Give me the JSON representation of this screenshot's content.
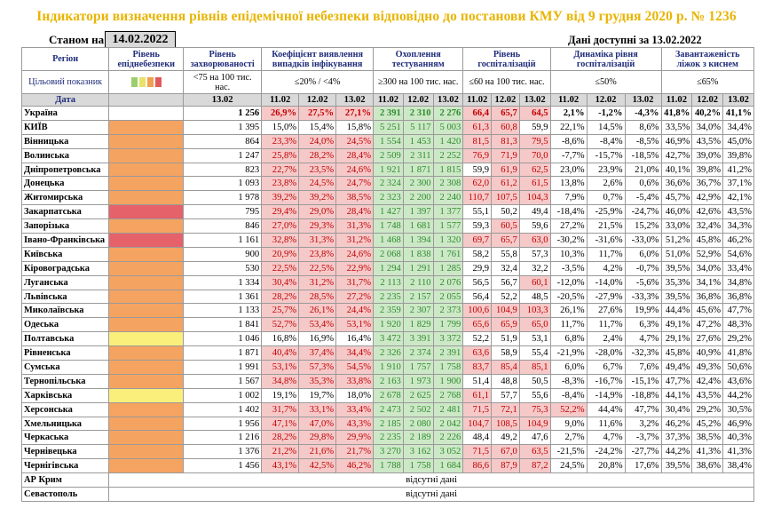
{
  "title": "Індикатори визначення рівнів епідемічної небезпеки відповідно до постанови КМУ від 9 грудня 2020 р. № 1236",
  "as_of_label": "Станом на",
  "as_of_date": "14.02.2022",
  "data_available": "Дані доступні за 13.02.2022",
  "headers": {
    "region": "Регіон",
    "target": "Цільовий показник",
    "date": "Дата",
    "level": "Рівень епіднебезпеки",
    "incidence": "Рівень захворюваності",
    "incidence_target": "<75 на 100 тис. нас.",
    "detection": "Коефіцієнт виявлення випадків інфікування",
    "detection_target": "≤20% / <4%",
    "testing": "Охоплення тестуванням",
    "testing_target": "≥300 на 100 тис. нас.",
    "hosp": "Рівень госпіталізацій",
    "hosp_target": "≤60 на 100 тис. нас.",
    "dyn": "Динаміка рівня госпіталізацій",
    "dyn_target": "≤50%",
    "beds": "Завантаженість ліжок з киснем",
    "beds_target": "≤65%"
  },
  "dates": {
    "d1302": "13.02",
    "d1102": "11.02",
    "d1202": "12.02"
  },
  "colors": {
    "yellow": "#fbef7b",
    "orange": "#f5a361",
    "red": "#e5626a",
    "green_light": "#c9e27a"
  },
  "legend_swatches": [
    "#9ccf6b",
    "#e8e16a",
    "#f0a050",
    "#e05a5a"
  ],
  "rows": [
    {
      "r": "Україна",
      "lvl": "",
      "inc": "1 256",
      "det": [
        "26,9%",
        "27,5%",
        "27,1%"
      ],
      "tst": [
        "2 391",
        "2 310",
        "2 276"
      ],
      "hosp": [
        "66,4",
        "65,7",
        "64,5"
      ],
      "dyn": [
        "2,1%",
        "-1,2%",
        "-4,3%"
      ],
      "beds": [
        "41,8%",
        "40,2%",
        "41,1%"
      ]
    },
    {
      "r": "КИЇВ",
      "lvl": "orange",
      "inc": "1 395",
      "det": [
        "15,0%",
        "15,4%",
        "15,8%"
      ],
      "tst": [
        "5 251",
        "5 117",
        "5 003"
      ],
      "hosp": [
        "61,3",
        "60,8",
        "59,9"
      ],
      "dyn": [
        "22,1%",
        "14,5%",
        "8,6%"
      ],
      "beds": [
        "33,5%",
        "34,0%",
        "34,4%"
      ]
    },
    {
      "r": "Вінницька",
      "lvl": "orange",
      "inc": "864",
      "det": [
        "23,3%",
        "24,0%",
        "24,5%"
      ],
      "tst": [
        "1 554",
        "1 453",
        "1 420"
      ],
      "hosp": [
        "81,5",
        "81,3",
        "79,5"
      ],
      "dyn": [
        "-8,6%",
        "-8,4%",
        "-8,5%"
      ],
      "beds": [
        "46,9%",
        "43,5%",
        "45,0%"
      ]
    },
    {
      "r": "Волинська",
      "lvl": "orange",
      "inc": "1 247",
      "det": [
        "25,8%",
        "28,2%",
        "28,4%"
      ],
      "tst": [
        "2 509",
        "2 311",
        "2 252"
      ],
      "hosp": [
        "76,9",
        "71,9",
        "70,0"
      ],
      "dyn": [
        "-7,7%",
        "-15,7%",
        "-18,5%"
      ],
      "beds": [
        "42,7%",
        "39,0%",
        "39,8%"
      ]
    },
    {
      "r": "Дніпропетровська",
      "lvl": "orange",
      "inc": "823",
      "det": [
        "22,7%",
        "23,5%",
        "24,6%"
      ],
      "tst": [
        "1 921",
        "1 871",
        "1 815"
      ],
      "hosp": [
        "59,9",
        "61,9",
        "62,5"
      ],
      "dyn": [
        "23,0%",
        "23,9%",
        "21,0%"
      ],
      "beds": [
        "40,1%",
        "39,8%",
        "41,2%"
      ]
    },
    {
      "r": "Донецька",
      "lvl": "orange",
      "inc": "1 093",
      "det": [
        "23,8%",
        "24,5%",
        "24,7%"
      ],
      "tst": [
        "2 324",
        "2 300",
        "2 308"
      ],
      "hosp": [
        "62,0",
        "61,2",
        "61,5"
      ],
      "dyn": [
        "13,8%",
        "2,6%",
        "0,6%"
      ],
      "beds": [
        "36,6%",
        "36,7%",
        "37,1%"
      ]
    },
    {
      "r": "Житомирська",
      "lvl": "orange",
      "inc": "1 978",
      "det": [
        "39,2%",
        "39,2%",
        "38,5%"
      ],
      "tst": [
        "2 323",
        "2 200",
        "2 240"
      ],
      "hosp": [
        "110,7",
        "107,5",
        "104,3"
      ],
      "dyn": [
        "7,9%",
        "0,7%",
        "-5,4%"
      ],
      "beds": [
        "45,7%",
        "42,9%",
        "42,1%"
      ]
    },
    {
      "r": "Закарпатська",
      "lvl": "red",
      "inc": "795",
      "det": [
        "29,4%",
        "29,0%",
        "28,4%"
      ],
      "tst": [
        "1 427",
        "1 397",
        "1 377"
      ],
      "hosp": [
        "55,1",
        "50,2",
        "49,4"
      ],
      "dyn": [
        "-18,4%",
        "-25,9%",
        "-24,7%"
      ],
      "beds": [
        "46,0%",
        "42,6%",
        "43,5%"
      ]
    },
    {
      "r": "Запорізька",
      "lvl": "orange",
      "inc": "846",
      "det": [
        "27,0%",
        "29,3%",
        "31,3%"
      ],
      "tst": [
        "1 748",
        "1 681",
        "1 577"
      ],
      "hosp": [
        "59,3",
        "60,5",
        "59,6"
      ],
      "dyn": [
        "27,2%",
        "21,5%",
        "15,2%"
      ],
      "beds": [
        "33,0%",
        "32,4%",
        "34,3%"
      ]
    },
    {
      "r": "Івано-Франківська",
      "lvl": "red",
      "inc": "1 161",
      "det": [
        "32,8%",
        "31,3%",
        "31,2%"
      ],
      "tst": [
        "1 468",
        "1 394",
        "1 320"
      ],
      "hosp": [
        "69,7",
        "65,7",
        "63,0"
      ],
      "dyn": [
        "-30,2%",
        "-31,6%",
        "-33,0%"
      ],
      "beds": [
        "51,2%",
        "45,8%",
        "46,2%"
      ]
    },
    {
      "r": "Київська",
      "lvl": "orange",
      "inc": "900",
      "det": [
        "20,9%",
        "23,8%",
        "24,6%"
      ],
      "tst": [
        "2 068",
        "1 838",
        "1 761"
      ],
      "hosp": [
        "58,2",
        "55,8",
        "57,3"
      ],
      "dyn": [
        "10,3%",
        "11,7%",
        "6,0%"
      ],
      "beds": [
        "51,0%",
        "52,9%",
        "54,6%"
      ]
    },
    {
      "r": "Кіровоградська",
      "lvl": "orange",
      "inc": "530",
      "det": [
        "22,5%",
        "22,5%",
        "22,9%"
      ],
      "tst": [
        "1 294",
        "1 291",
        "1 285"
      ],
      "hosp": [
        "29,9",
        "32,4",
        "32,2"
      ],
      "dyn": [
        "-3,5%",
        "4,2%",
        "-0,7%"
      ],
      "beds": [
        "39,5%",
        "34,0%",
        "33,4%"
      ]
    },
    {
      "r": "Луганська",
      "lvl": "orange",
      "inc": "1 334",
      "det": [
        "30,4%",
        "31,2%",
        "31,7%"
      ],
      "tst": [
        "2 113",
        "2 110",
        "2 076"
      ],
      "hosp": [
        "56,5",
        "56,7",
        "60,1"
      ],
      "dyn": [
        "-12,0%",
        "-14,0%",
        "-5,6%"
      ],
      "beds": [
        "35,3%",
        "34,1%",
        "34,8%"
      ]
    },
    {
      "r": "Львівська",
      "lvl": "orange",
      "inc": "1 361",
      "det": [
        "28,2%",
        "28,5%",
        "27,2%"
      ],
      "tst": [
        "2 235",
        "2 157",
        "2 055"
      ],
      "hosp": [
        "56,4",
        "52,2",
        "48,5"
      ],
      "dyn": [
        "-20,5%",
        "-27,9%",
        "-33,3%"
      ],
      "beds": [
        "39,5%",
        "36,8%",
        "36,8%"
      ]
    },
    {
      "r": "Миколаївська",
      "lvl": "orange",
      "inc": "1 133",
      "det": [
        "25,7%",
        "26,1%",
        "24,4%"
      ],
      "tst": [
        "2 359",
        "2 307",
        "2 373"
      ],
      "hosp": [
        "100,6",
        "104,9",
        "103,3"
      ],
      "dyn": [
        "26,1%",
        "27,6%",
        "19,9%"
      ],
      "beds": [
        "44,4%",
        "45,6%",
        "47,7%"
      ]
    },
    {
      "r": "Одеська",
      "lvl": "orange",
      "inc": "1 841",
      "det": [
        "52,7%",
        "53,4%",
        "53,1%"
      ],
      "tst": [
        "1 920",
        "1 829",
        "1 799"
      ],
      "hosp": [
        "65,6",
        "65,9",
        "65,0"
      ],
      "dyn": [
        "11,7%",
        "11,7%",
        "6,3%"
      ],
      "beds": [
        "49,1%",
        "47,2%",
        "48,3%"
      ]
    },
    {
      "r": "Полтавська",
      "lvl": "yellow",
      "inc": "1 046",
      "det": [
        "16,8%",
        "16,9%",
        "16,4%"
      ],
      "tst": [
        "3 472",
        "3 391",
        "3 372"
      ],
      "hosp": [
        "52,2",
        "51,9",
        "53,1"
      ],
      "dyn": [
        "6,8%",
        "2,4%",
        "4,7%"
      ],
      "beds": [
        "29,1%",
        "27,6%",
        "29,2%"
      ]
    },
    {
      "r": "Рівненська",
      "lvl": "orange",
      "inc": "1 871",
      "det": [
        "40,4%",
        "37,4%",
        "34,4%"
      ],
      "tst": [
        "2 326",
        "2 374",
        "2 391"
      ],
      "hosp": [
        "63,6",
        "58,9",
        "55,4"
      ],
      "dyn": [
        "-21,9%",
        "-28,0%",
        "-32,3%"
      ],
      "beds": [
        "45,8%",
        "40,9%",
        "41,8%"
      ]
    },
    {
      "r": "Сумська",
      "lvl": "orange",
      "inc": "1 991",
      "det": [
        "53,1%",
        "57,3%",
        "54,5%"
      ],
      "tst": [
        "1 910",
        "1 757",
        "1 758"
      ],
      "hosp": [
        "83,7",
        "85,4",
        "85,1"
      ],
      "dyn": [
        "6,0%",
        "6,7%",
        "7,6%"
      ],
      "beds": [
        "49,4%",
        "49,3%",
        "50,6%"
      ]
    },
    {
      "r": "Тернопільська",
      "lvl": "orange",
      "inc": "1 567",
      "det": [
        "34,8%",
        "35,3%",
        "33,8%"
      ],
      "tst": [
        "2 163",
        "1 973",
        "1 900"
      ],
      "hosp": [
        "51,4",
        "48,8",
        "50,5"
      ],
      "dyn": [
        "-8,3%",
        "-16,7%",
        "-15,1%"
      ],
      "beds": [
        "47,7%",
        "42,4%",
        "43,6%"
      ]
    },
    {
      "r": "Харківська",
      "lvl": "yellow",
      "inc": "1 002",
      "det": [
        "19,1%",
        "19,7%",
        "18,0%"
      ],
      "tst": [
        "2 678",
        "2 625",
        "2 768"
      ],
      "hosp": [
        "61,1",
        "57,7",
        "55,6"
      ],
      "dyn": [
        "-8,4%",
        "-14,9%",
        "-18,8%"
      ],
      "beds": [
        "44,1%",
        "43,5%",
        "44,2%"
      ]
    },
    {
      "r": "Херсонська",
      "lvl": "orange",
      "inc": "1 402",
      "det": [
        "31,7%",
        "33,1%",
        "33,4%"
      ],
      "tst": [
        "2 473",
        "2 502",
        "2 481"
      ],
      "hosp": [
        "71,5",
        "72,1",
        "75,3"
      ],
      "dyn": [
        "52,2%",
        "44,4%",
        "47,7%"
      ],
      "beds": [
        "30,4%",
        "29,2%",
        "30,5%"
      ]
    },
    {
      "r": "Хмельницька",
      "lvl": "orange",
      "inc": "1 956",
      "det": [
        "47,1%",
        "47,0%",
        "43,3%"
      ],
      "tst": [
        "2 185",
        "2 080",
        "2 042"
      ],
      "hosp": [
        "104,7",
        "108,5",
        "104,9"
      ],
      "dyn": [
        "9,0%",
        "11,6%",
        "3,2%"
      ],
      "beds": [
        "46,2%",
        "45,2%",
        "46,9%"
      ]
    },
    {
      "r": "Черкаська",
      "lvl": "orange",
      "inc": "1 216",
      "det": [
        "28,2%",
        "29,8%",
        "29,9%"
      ],
      "tst": [
        "2 235",
        "2 189",
        "2 226"
      ],
      "hosp": [
        "48,4",
        "49,2",
        "47,6"
      ],
      "dyn": [
        "2,7%",
        "4,7%",
        "-3,7%"
      ],
      "beds": [
        "37,3%",
        "38,5%",
        "40,3%"
      ]
    },
    {
      "r": "Чернівецька",
      "lvl": "orange",
      "inc": "1 376",
      "det": [
        "21,2%",
        "21,6%",
        "21,7%"
      ],
      "tst": [
        "3 270",
        "3 162",
        "3 052"
      ],
      "hosp": [
        "71,5",
        "67,0",
        "63,5"
      ],
      "dyn": [
        "-21,5%",
        "-24,2%",
        "-27,7%"
      ],
      "beds": [
        "44,2%",
        "41,3%",
        "41,3%"
      ]
    },
    {
      "r": "Чернігівська",
      "lvl": "orange",
      "inc": "1 456",
      "det": [
        "43,1%",
        "42,5%",
        "46,2%"
      ],
      "tst": [
        "1 788",
        "1 758",
        "1 684"
      ],
      "hosp": [
        "86,6",
        "87,9",
        "87,2"
      ],
      "dyn": [
        "24,5%",
        "20,8%",
        "17,6%"
      ],
      "beds": [
        "39,5%",
        "38,6%",
        "38,4%"
      ]
    }
  ],
  "no_data_rows": [
    {
      "r": "АР Крим",
      "text": "відсутні дані"
    },
    {
      "r": "Севастополь",
      "text": "відсутні дані"
    }
  ]
}
